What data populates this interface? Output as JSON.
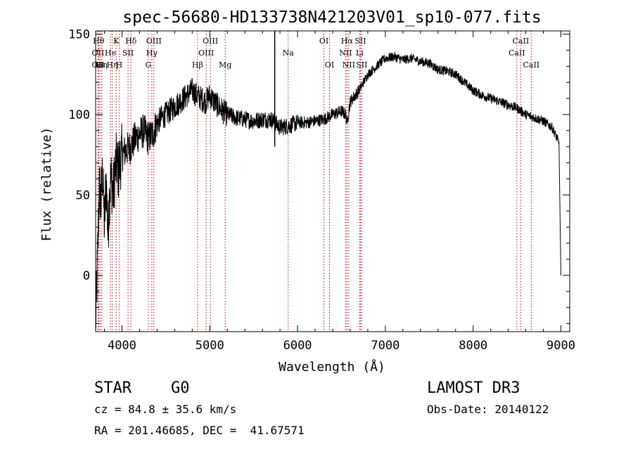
{
  "chart_data": {
    "type": "line",
    "title": "spec-56680-HD133738N421203V01_sp10-077.fits",
    "xlabel": "Wavelength (Å)",
    "ylabel": "Flux (relative)",
    "xlim": [
      3700,
      9100
    ],
    "ylim": [
      -35,
      152
    ],
    "x_ticks": [
      4000,
      5000,
      6000,
      7000,
      8000,
      9000
    ],
    "y_ticks": [
      0,
      50,
      100,
      150
    ],
    "grid": false,
    "line_color": "#000000",
    "marker_color": "#cc0000",
    "series": [
      {
        "x": [
          3700,
          3720,
          3740,
          3760,
          3780,
          3800,
          3820,
          3840,
          3860,
          3880,
          3900,
          3920,
          3940,
          3960,
          3980,
          4000,
          4050,
          4100,
          4150,
          4200,
          4250,
          4300,
          4350,
          4400,
          4450,
          4500,
          4600,
          4700,
          4800,
          4850,
          4900,
          4950,
          5000,
          5050,
          5100,
          5150,
          5200,
          5300,
          5400,
          5500,
          5600,
          5700,
          5740,
          5800,
          5900,
          6000,
          6100,
          6200,
          6300,
          6400,
          6500,
          6550,
          6563,
          6600,
          6700,
          6800,
          6900,
          7000,
          7100,
          7200,
          7300,
          7400,
          7500,
          7600,
          7700,
          7800,
          7900,
          8000,
          8100,
          8200,
          8300,
          8400,
          8500,
          8600,
          8700,
          8800,
          8900,
          8950,
          8980,
          9000
        ],
        "y": [
          -30,
          5,
          55,
          45,
          65,
          30,
          60,
          25,
          55,
          60,
          50,
          65,
          70,
          65,
          72,
          75,
          78,
          80,
          85,
          88,
          90,
          85,
          88,
          95,
          98,
          100,
          105,
          110,
          115,
          112,
          110,
          108,
          112,
          108,
          105,
          102,
          100,
          98,
          97,
          96,
          97,
          97,
          95,
          92,
          93,
          95,
          95,
          96,
          97,
          100,
          102,
          100,
          95,
          108,
          115,
          125,
          130,
          135,
          136,
          134,
          135,
          133,
          132,
          128,
          127,
          125,
          120,
          115,
          112,
          110,
          108,
          106,
          104,
          100,
          98,
          96,
          92,
          86,
          82,
          0
        ]
      }
    ],
    "spike": {
      "x": 5740,
      "y_bottom": 80,
      "y_top": 152
    },
    "line_markers": [
      {
        "x": 3734,
        "label": "Hθ",
        "row": 1
      },
      {
        "x": 3727,
        "label": "OII",
        "row": 2
      },
      {
        "x": 3727,
        "label": "OII",
        "row": 3
      },
      {
        "x": 3750,
        "label": "Hε",
        "row": 3
      },
      {
        "x": 3770,
        "label": "Hη",
        "row": 3
      },
      {
        "x": 3869,
        "label": "He",
        "row": 2
      },
      {
        "x": 3934,
        "label": "K",
        "row": 1
      },
      {
        "x": 3889,
        "label": "Hη",
        "row": 3
      },
      {
        "x": 3968,
        "label": "H",
        "row": 3
      },
      {
        "x": 4069,
        "label": "SII",
        "row": 2
      },
      {
        "x": 4102,
        "label": "Hδ",
        "row": 1
      },
      {
        "x": 4300,
        "label": "G",
        "row": 3
      },
      {
        "x": 4340,
        "label": "Hγ",
        "row": 2
      },
      {
        "x": 4363,
        "label": "OIII",
        "row": 1
      },
      {
        "x": 4861,
        "label": "Hβ",
        "row": 3
      },
      {
        "x": 4959,
        "label": "OIII",
        "row": 2
      },
      {
        "x": 5007,
        "label": "OIII",
        "row": 1
      },
      {
        "x": 5175,
        "label": "Mg",
        "row": 3
      },
      {
        "x": 5893,
        "label": "Na",
        "row": 2
      },
      {
        "x": 6300,
        "label": "OI",
        "row": 1
      },
      {
        "x": 6364,
        "label": "OI",
        "row": 3
      },
      {
        "x": 6548,
        "label": "NII",
        "row": 2
      },
      {
        "x": 6563,
        "label": "Hα",
        "row": 1
      },
      {
        "x": 6583,
        "label": "NII",
        "row": 3
      },
      {
        "x": 6707,
        "label": "Li",
        "row": 2
      },
      {
        "x": 6716,
        "label": "SII",
        "row": 1
      },
      {
        "x": 6731,
        "label": "SII",
        "row": 3
      },
      {
        "x": 8498,
        "label": "CaII",
        "row": 2
      },
      {
        "x": 8542,
        "label": "CaII",
        "row": 1
      },
      {
        "x": 8662,
        "label": "CaII",
        "row": 3
      }
    ]
  },
  "info": {
    "class": "STAR",
    "subclass": "G0",
    "survey": "LAMOST DR3",
    "cz": "cz = 84.8 ± 35.6 km/s",
    "obs_date": "Obs-Date: 20140122",
    "coords": "RA = 201.46685, DEC =  41.67571"
  }
}
